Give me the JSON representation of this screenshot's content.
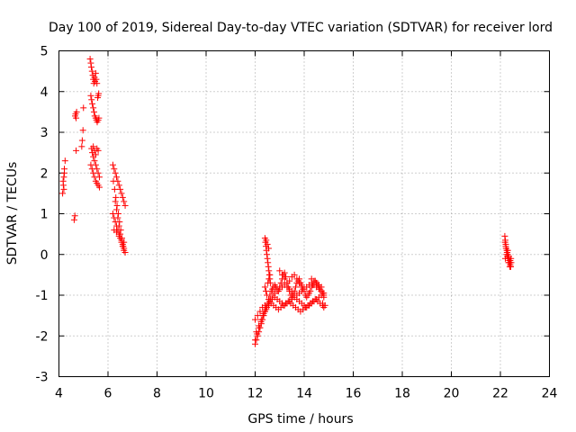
{
  "chart_data": {
    "type": "scatter",
    "title": "Day 100 of 2019, Sidereal Day-to-day VTEC variation (SDTVAR) for receiver lord",
    "xlabel": "GPS time / hours",
    "ylabel": "SDTVAR / TECUs",
    "xlim": [
      4,
      24
    ],
    "ylim": [
      -3,
      5
    ],
    "xticks": [
      "4",
      "6",
      "8",
      "10",
      "12",
      "14",
      "16",
      "18",
      "20",
      "22",
      "24"
    ],
    "yticks": [
      "-3",
      "-2",
      "-1",
      "0",
      "1",
      "2",
      "3",
      "4",
      "5"
    ],
    "grid": true,
    "marker": "+",
    "series": [
      {
        "name": "SDTVAR",
        "color": "#ff0000",
        "x": [
          4.15,
          4.18,
          4.2,
          4.22,
          4.25,
          4.2,
          4.17,
          4.22,
          4.62,
          4.65,
          4.7,
          4.72,
          4.68,
          4.66,
          4.7,
          4.93,
          4.95,
          4.98,
          5.0,
          5.27,
          5.3,
          5.32,
          5.35,
          5.38,
          5.4,
          5.42,
          5.45,
          5.47,
          5.5,
          5.52,
          5.55,
          5.58,
          5.6,
          5.62,
          5.3,
          5.33,
          5.36,
          5.4,
          5.43,
          5.46,
          5.5,
          5.53,
          5.56,
          5.6,
          5.63,
          5.33,
          5.36,
          5.4,
          5.45,
          5.5,
          5.55,
          5.6,
          5.65,
          5.4,
          5.45,
          5.5,
          5.55,
          5.6,
          5.3,
          5.35,
          5.4,
          5.45,
          5.5,
          5.55,
          5.6,
          5.65,
          6.2,
          6.25,
          6.3,
          6.35,
          6.4,
          6.45,
          6.5,
          6.55,
          6.6,
          6.65,
          6.7,
          6.22,
          6.27,
          6.32,
          6.37,
          6.42,
          6.47,
          6.52,
          6.57,
          6.62,
          6.2,
          6.25,
          6.3,
          6.35,
          6.4,
          6.45,
          6.5,
          6.55,
          6.6,
          6.65,
          6.7,
          6.3,
          6.35,
          6.4,
          6.45,
          6.5,
          6.55,
          6.6,
          6.65,
          6.25,
          6.35,
          6.45,
          6.55,
          6.65,
          12.0,
          12.05,
          12.1,
          12.15,
          12.2,
          12.25,
          12.3,
          12.35,
          12.4,
          12.45,
          12.5,
          12.55,
          12.6,
          12.65,
          12.7,
          12.75,
          12.8,
          12.85,
          12.9,
          12.95,
          13.0,
          13.05,
          13.1,
          13.15,
          13.2,
          13.25,
          13.3,
          13.35,
          13.4,
          13.45,
          13.5,
          13.55,
          13.6,
          13.65,
          13.7,
          13.75,
          13.8,
          13.85,
          13.9,
          13.95,
          14.0,
          14.05,
          14.1,
          14.15,
          14.2,
          14.25,
          14.3,
          14.35,
          14.4,
          14.45,
          14.5,
          14.55,
          14.6,
          14.65,
          14.7,
          14.75,
          14.8,
          12.0,
          12.1,
          12.2,
          12.3,
          12.4,
          12.5,
          12.6,
          12.7,
          12.8,
          12.9,
          13.0,
          13.1,
          13.2,
          13.3,
          13.4,
          13.5,
          13.6,
          13.7,
          13.8,
          13.9,
          14.0,
          14.1,
          14.2,
          14.3,
          14.4,
          14.5,
          14.6,
          14.7,
          14.8,
          12.0,
          12.08,
          12.16,
          12.24,
          12.32,
          12.4,
          12.48,
          12.56,
          12.64,
          12.72,
          12.8,
          12.9,
          13.0,
          13.1,
          13.2,
          13.3,
          13.4,
          13.5,
          13.6,
          13.7,
          13.8,
          13.9,
          14.0,
          14.1,
          14.2,
          14.3,
          14.4,
          14.5,
          14.6,
          14.7,
          14.8,
          12.05,
          12.15,
          12.25,
          12.35,
          12.45,
          12.55,
          12.65,
          12.75,
          12.85,
          12.95,
          13.05,
          13.15,
          13.25,
          13.35,
          13.45,
          13.55,
          13.65,
          13.75,
          13.85,
          13.95,
          14.05,
          14.15,
          14.25,
          14.35,
          14.45,
          14.55,
          14.65,
          14.75,
          12.4,
          12.42,
          12.44,
          12.46,
          12.48,
          12.5,
          12.52,
          12.54,
          12.56,
          12.58,
          12.6,
          12.62,
          12.45,
          12.5,
          12.55,
          12.4,
          12.44,
          12.48,
          12.52,
          12.56,
          12.6,
          14.3,
          14.4,
          14.5,
          14.6,
          14.7,
          14.75,
          14.8,
          14.85,
          13.0,
          13.1,
          13.2,
          13.3,
          13.4,
          13.5,
          13.6,
          13.7,
          13.8,
          13.9,
          22.18,
          22.2,
          22.22,
          22.24,
          22.26,
          22.28,
          22.3,
          22.32,
          22.34,
          22.36,
          22.38,
          22.4,
          22.42,
          22.44,
          22.2,
          22.25,
          22.3,
          22.35,
          22.4,
          22.22,
          22.27,
          22.32,
          22.37,
          22.42,
          22.19,
          22.23,
          22.28,
          22.33,
          22.38,
          22.43
        ],
        "y": [
          1.5,
          1.7,
          1.9,
          2.1,
          2.3,
          1.6,
          1.8,
          2.0,
          0.85,
          0.95,
          3.35,
          3.5,
          3.45,
          3.4,
          2.55,
          2.65,
          2.8,
          3.05,
          3.6,
          4.8,
          4.7,
          4.6,
          4.5,
          4.4,
          4.3,
          4.2,
          4.35,
          4.25,
          4.45,
          4.3,
          4.2,
          3.85,
          3.9,
          3.95,
          3.9,
          3.8,
          3.7,
          3.6,
          3.5,
          3.4,
          3.35,
          3.3,
          3.25,
          3.3,
          3.35,
          2.6,
          2.5,
          2.4,
          2.3,
          2.2,
          2.1,
          2.0,
          1.9,
          2.65,
          2.55,
          2.45,
          2.6,
          2.55,
          2.2,
          2.1,
          2.0,
          1.9,
          1.8,
          1.75,
          1.7,
          1.65,
          2.2,
          2.1,
          2.0,
          1.9,
          1.8,
          1.7,
          1.6,
          1.5,
          1.4,
          1.3,
          1.2,
          1.8,
          1.6,
          1.4,
          1.2,
          1.0,
          0.8,
          0.6,
          0.4,
          0.2,
          1.0,
          0.9,
          0.8,
          0.7,
          0.6,
          0.5,
          0.4,
          0.3,
          0.2,
          0.1,
          0.05,
          1.3,
          1.1,
          0.9,
          0.7,
          0.5,
          0.35,
          0.25,
          0.15,
          0.6,
          0.55,
          0.45,
          0.35,
          0.3,
          -2.2,
          -2.1,
          -2.0,
          -1.9,
          -1.8,
          -1.7,
          -1.6,
          -1.5,
          -1.4,
          -1.3,
          -1.2,
          -1.1,
          -1.0,
          -0.9,
          -0.85,
          -0.8,
          -0.75,
          -0.8,
          -0.85,
          -0.9,
          -0.8,
          -0.7,
          -0.6,
          -0.5,
          -0.45,
          -0.55,
          -0.7,
          -0.8,
          -0.9,
          -1.0,
          -1.05,
          -1.0,
          -0.9,
          -0.8,
          -0.7,
          -0.65,
          -0.6,
          -0.7,
          -0.8,
          -0.85,
          -0.9,
          -1.0,
          -1.05,
          -1.0,
          -0.95,
          -0.9,
          -0.8,
          -0.75,
          -0.7,
          -0.65,
          -0.7,
          -0.75,
          -0.8,
          -0.85,
          -0.9,
          -0.95,
          -1.0,
          -1.6,
          -1.5,
          -1.4,
          -1.3,
          -1.25,
          -1.2,
          -1.15,
          -1.1,
          -1.05,
          -1.1,
          -1.15,
          -1.2,
          -1.25,
          -1.2,
          -1.15,
          -1.1,
          -1.05,
          -1.1,
          -1.15,
          -1.2,
          -1.25,
          -1.3,
          -1.25,
          -1.2,
          -1.15,
          -1.1,
          -1.05,
          -1.0,
          -1.05,
          -2.1,
          -1.95,
          -1.8,
          -1.65,
          -1.5,
          -1.4,
          -1.3,
          -1.2,
          -1.1,
          -1.0,
          -0.95,
          -0.9,
          -0.85,
          -0.8,
          -0.75,
          -0.8,
          -0.85,
          -0.9,
          -0.95,
          -1.0,
          -0.95,
          -0.9,
          -0.85,
          -0.8,
          -0.75,
          -0.7,
          -0.75,
          -0.8,
          -0.85,
          -0.9,
          -0.95,
          -1.9,
          -1.75,
          -1.6,
          -1.45,
          -1.35,
          -1.25,
          -1.2,
          -1.25,
          -1.3,
          -1.35,
          -1.3,
          -1.25,
          -1.2,
          -1.15,
          -1.2,
          -1.25,
          -1.3,
          -1.35,
          -1.4,
          -1.35,
          -1.3,
          -1.25,
          -1.2,
          -1.15,
          -1.1,
          -1.15,
          -1.2,
          -1.25,
          0.4,
          0.3,
          0.2,
          0.1,
          0.0,
          -0.1,
          -0.2,
          -0.3,
          -0.4,
          -0.5,
          -0.6,
          -0.7,
          0.35,
          0.25,
          0.15,
          -0.8,
          -0.9,
          -1.0,
          -0.7,
          -0.6,
          -0.5,
          -0.6,
          -0.65,
          -0.7,
          -0.75,
          -0.8,
          -1.2,
          -1.3,
          -1.25,
          -0.4,
          -0.5,
          -0.6,
          -0.7,
          -0.65,
          -0.55,
          -0.5,
          -0.6,
          -0.7,
          -0.75,
          0.45,
          0.35,
          0.25,
          0.15,
          0.1,
          0.05,
          0.0,
          -0.05,
          -0.1,
          -0.15,
          -0.2,
          -0.25,
          -0.3,
          -0.2,
          -0.1,
          0.0,
          0.1,
          -0.05,
          -0.15,
          0.2,
          0.05,
          -0.1,
          -0.2,
          -0.3,
          0.3,
          0.15,
          -0.05,
          -0.2,
          -0.3,
          -0.1
        ]
      }
    ]
  }
}
